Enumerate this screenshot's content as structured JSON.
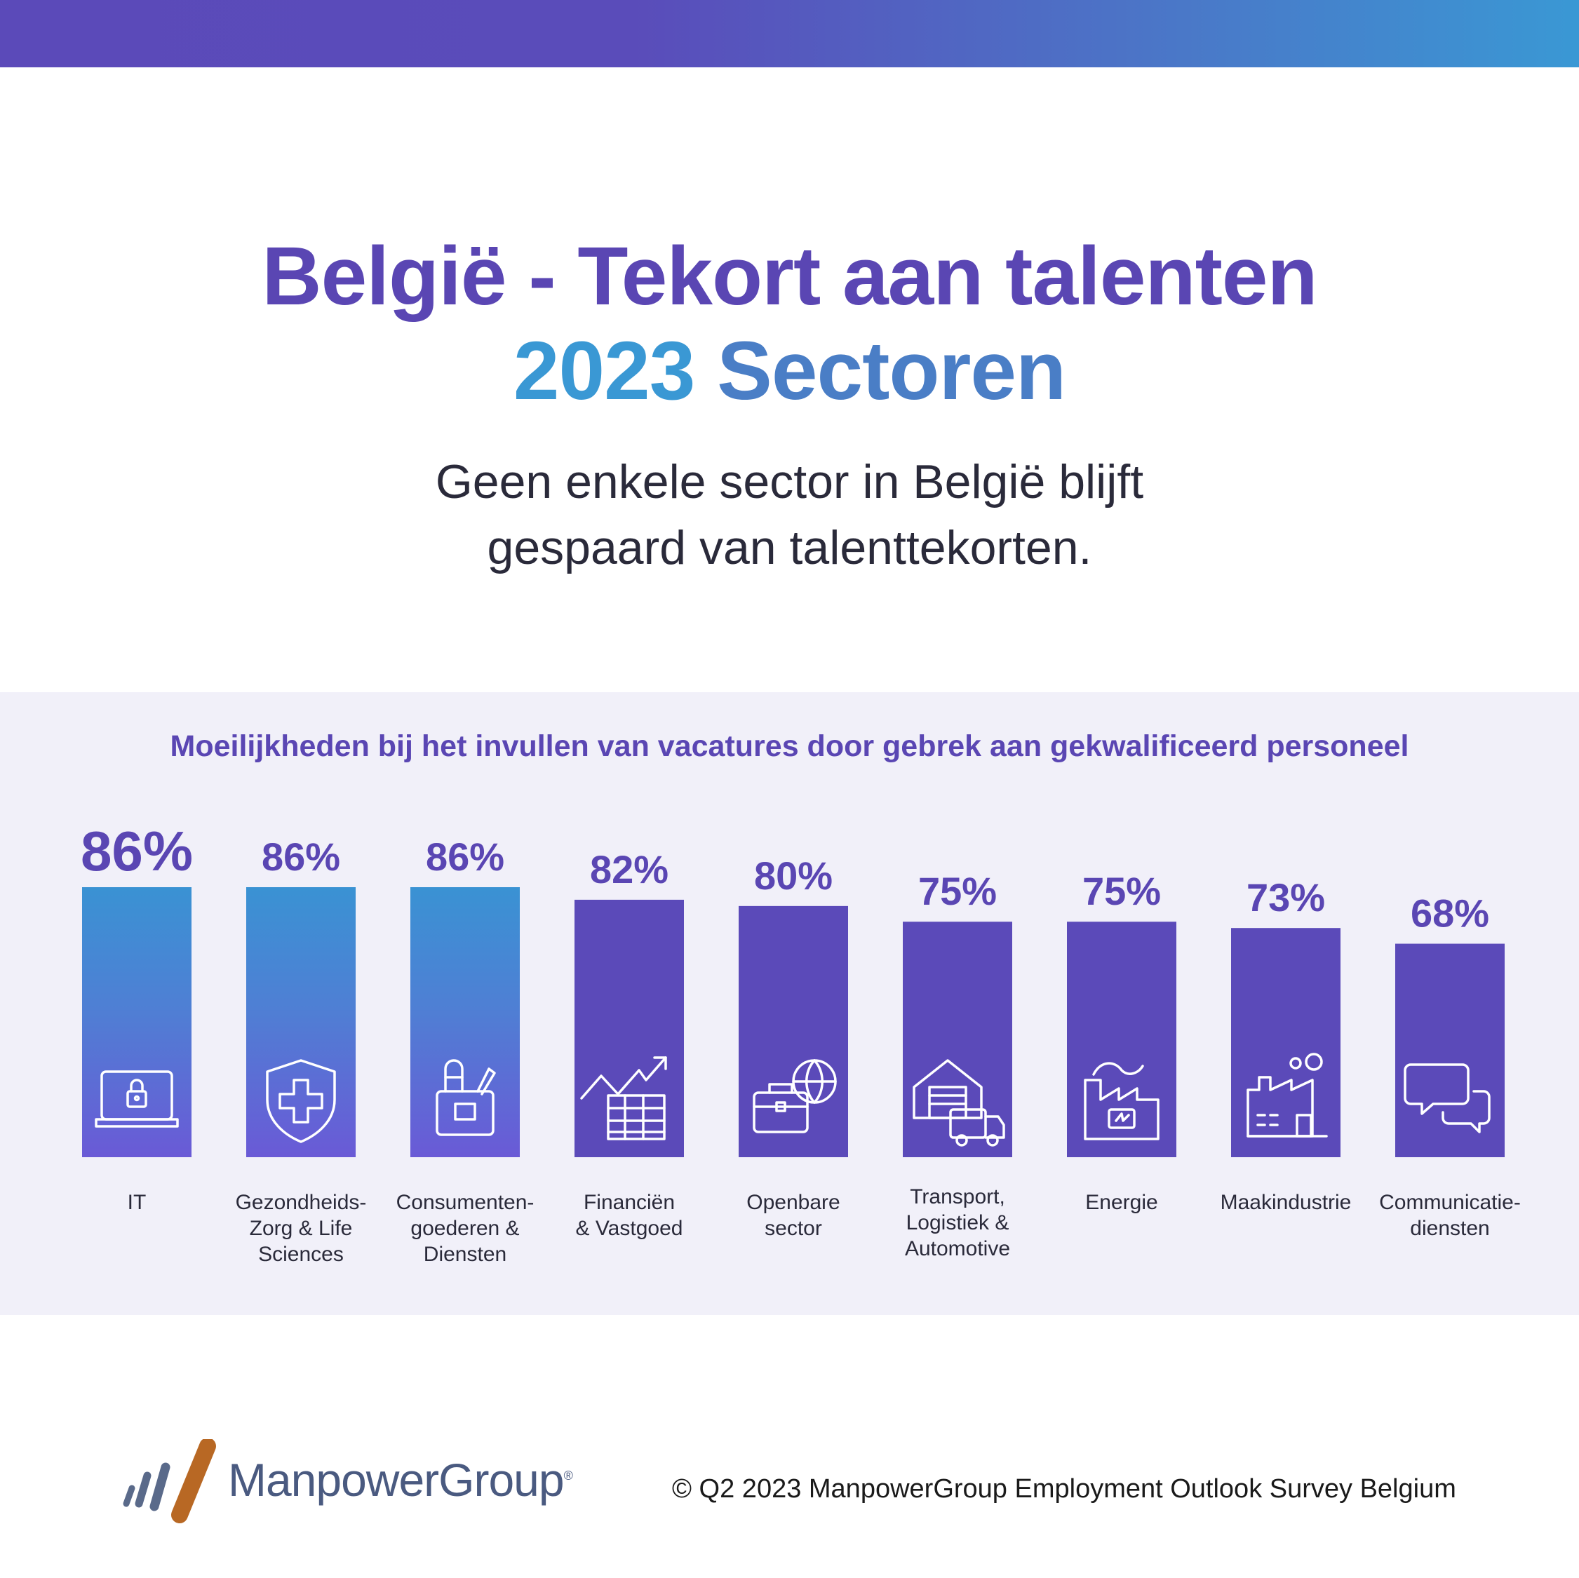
{
  "header": {
    "title_line1": "België - Tekort aan talenten",
    "title_line2_year": "2023",
    "title_line2_word": "Sectoren",
    "subtitle_line1": "Geen enkele sector in België blijft",
    "subtitle_line2": "gespaard van talenttekorten."
  },
  "chart_data": {
    "type": "bar",
    "title": "Moeilijkheden bij het invullen van vacatures door gebrek aan gekwalificeerd personeel",
    "ylabel": "",
    "unit": "%",
    "ylim": [
      0,
      86
    ],
    "categories": [
      "IT",
      "Gezondheids-Zorg & Life Sciences",
      "Consumenten-goederen & Diensten",
      "Financiën & Vastgoed",
      "Openbare sector",
      "Transport, Logistiek & Automotive",
      "Energie",
      "Maakindustrie",
      "Communicatie-diensten"
    ],
    "category_lines": [
      [
        "IT"
      ],
      [
        "Gezondheids-",
        "Zorg & Life",
        "Sciences"
      ],
      [
        "Consumenten-",
        "goederen &",
        "Diensten"
      ],
      [
        "Financiën",
        "& Vastgoed"
      ],
      [
        "Openbare",
        "sector"
      ],
      [
        "Transport,",
        "Logistiek &",
        "Automotive"
      ],
      [
        "Energie"
      ],
      [
        "Maakindustrie"
      ],
      [
        "Communicatie-",
        "diensten"
      ]
    ],
    "values": [
      86,
      86,
      86,
      82,
      80,
      75,
      75,
      73,
      68
    ],
    "value_labels": [
      "86%",
      "86%",
      "86%",
      "82%",
      "80%",
      "75%",
      "75%",
      "73%",
      "68%"
    ],
    "icons": [
      "laptop-lock-icon",
      "shield-cross-icon",
      "hand-consumer-icon",
      "growth-chart-icon",
      "briefcase-globe-icon",
      "warehouse-truck-icon",
      "factory-energy-icon",
      "factory-icon",
      "chat-bubbles-icon"
    ],
    "highlighted_bars": [
      0,
      1,
      2
    ],
    "colors": {
      "bar": "#5b4ab9",
      "highlight_top": "#3a92d3",
      "highlight_bottom": "#6a5ad6",
      "label": "#5a46b3"
    },
    "grid": false,
    "legend": "none"
  },
  "footer": {
    "logo_text": "ManpowerGroup",
    "logo_mark": "®",
    "copyright": "© Q2 2023 ManpowerGroup Employment Outlook Survey Belgium"
  }
}
